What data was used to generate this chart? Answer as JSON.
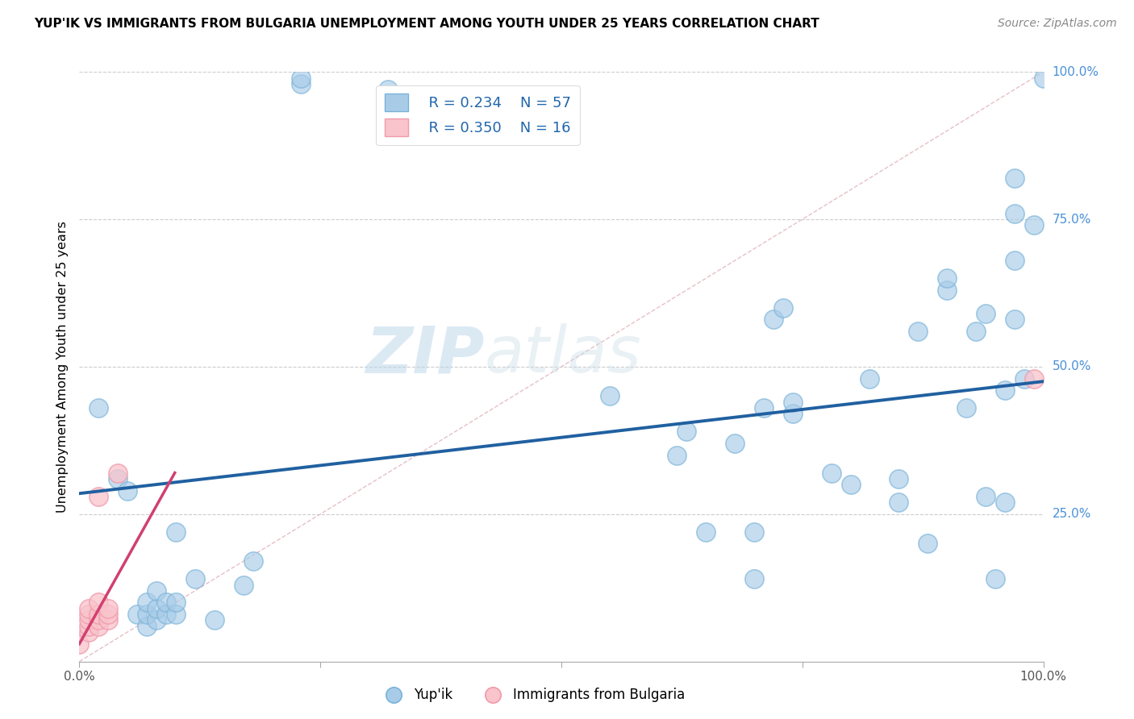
{
  "title": "YUP'IK VS IMMIGRANTS FROM BULGARIA UNEMPLOYMENT AMONG YOUTH UNDER 25 YEARS CORRELATION CHART",
  "source": "Source: ZipAtlas.com",
  "ylabel": "Unemployment Among Youth under 25 years",
  "xlim": [
    0,
    1
  ],
  "ylim": [
    0,
    1
  ],
  "legend_r1": "R = 0.234",
  "legend_n1": "N = 57",
  "legend_r2": "R = 0.350",
  "legend_n2": "N = 16",
  "blue_color": "#a8cce8",
  "blue_edge_color": "#7ab3d8",
  "pink_color": "#f9c4cc",
  "pink_edge_color": "#f09aaa",
  "line_color": "#2060a0",
  "pink_line_color": "#d04070",
  "diag_color": "#e0b0b8",
  "watermark_zip": "ZIP",
  "watermark_atlas": "atlas",
  "blue_scatter": [
    [
      0.02,
      0.43
    ],
    [
      0.04,
      0.31
    ],
    [
      0.05,
      0.29
    ],
    [
      0.06,
      0.08
    ],
    [
      0.07,
      0.06
    ],
    [
      0.07,
      0.08
    ],
    [
      0.07,
      0.1
    ],
    [
      0.08,
      0.07
    ],
    [
      0.08,
      0.09
    ],
    [
      0.08,
      0.12
    ],
    [
      0.09,
      0.08
    ],
    [
      0.09,
      0.1
    ],
    [
      0.1,
      0.08
    ],
    [
      0.1,
      0.1
    ],
    [
      0.12,
      0.14
    ],
    [
      0.14,
      0.07
    ],
    [
      0.17,
      0.13
    ],
    [
      0.18,
      0.17
    ],
    [
      0.23,
      0.98
    ],
    [
      0.23,
      0.99
    ],
    [
      0.32,
      0.97
    ],
    [
      0.55,
      0.45
    ],
    [
      0.62,
      0.35
    ],
    [
      0.63,
      0.39
    ],
    [
      0.65,
      0.22
    ],
    [
      0.68,
      0.37
    ],
    [
      0.7,
      0.22
    ],
    [
      0.7,
      0.14
    ],
    [
      0.71,
      0.43
    ],
    [
      0.72,
      0.58
    ],
    [
      0.73,
      0.6
    ],
    [
      0.74,
      0.42
    ],
    [
      0.74,
      0.44
    ],
    [
      0.78,
      0.32
    ],
    [
      0.8,
      0.3
    ],
    [
      0.82,
      0.48
    ],
    [
      0.85,
      0.27
    ],
    [
      0.85,
      0.31
    ],
    [
      0.87,
      0.56
    ],
    [
      0.88,
      0.2
    ],
    [
      0.9,
      0.63
    ],
    [
      0.9,
      0.65
    ],
    [
      0.92,
      0.43
    ],
    [
      0.93,
      0.56
    ],
    [
      0.94,
      0.59
    ],
    [
      0.94,
      0.28
    ],
    [
      0.95,
      0.14
    ],
    [
      0.96,
      0.27
    ],
    [
      0.96,
      0.46
    ],
    [
      0.97,
      0.58
    ],
    [
      0.97,
      0.68
    ],
    [
      0.97,
      0.76
    ],
    [
      0.97,
      0.82
    ],
    [
      0.98,
      0.48
    ],
    [
      0.99,
      0.74
    ],
    [
      1.0,
      0.99
    ],
    [
      0.1,
      0.22
    ]
  ],
  "pink_scatter": [
    [
      0.0,
      0.03
    ],
    [
      0.01,
      0.05
    ],
    [
      0.01,
      0.06
    ],
    [
      0.01,
      0.07
    ],
    [
      0.01,
      0.08
    ],
    [
      0.01,
      0.09
    ],
    [
      0.02,
      0.06
    ],
    [
      0.02,
      0.07
    ],
    [
      0.02,
      0.08
    ],
    [
      0.02,
      0.1
    ],
    [
      0.02,
      0.28
    ],
    [
      0.03,
      0.07
    ],
    [
      0.03,
      0.08
    ],
    [
      0.03,
      0.09
    ],
    [
      0.04,
      0.32
    ],
    [
      0.99,
      0.48
    ]
  ],
  "blue_line_x": [
    0.0,
    1.0
  ],
  "blue_line_y": [
    0.285,
    0.475
  ],
  "pink_line_x": [
    0.0,
    0.099
  ],
  "pink_line_y": [
    0.03,
    0.32
  ],
  "diag_line_x": [
    0.0,
    1.0
  ],
  "diag_line_y": [
    0.0,
    1.0
  ],
  "right_ytick_pos": [
    1.0,
    0.75,
    0.5,
    0.25
  ],
  "right_ytick_labels": [
    "100.0%",
    "75.0%",
    "50.0%",
    "25.0%"
  ],
  "xtick_pos": [
    0.0,
    0.25,
    0.5,
    0.75,
    1.0
  ],
  "xtick_labels": [
    "0.0%",
    "",
    "",
    "",
    "100.0%"
  ]
}
